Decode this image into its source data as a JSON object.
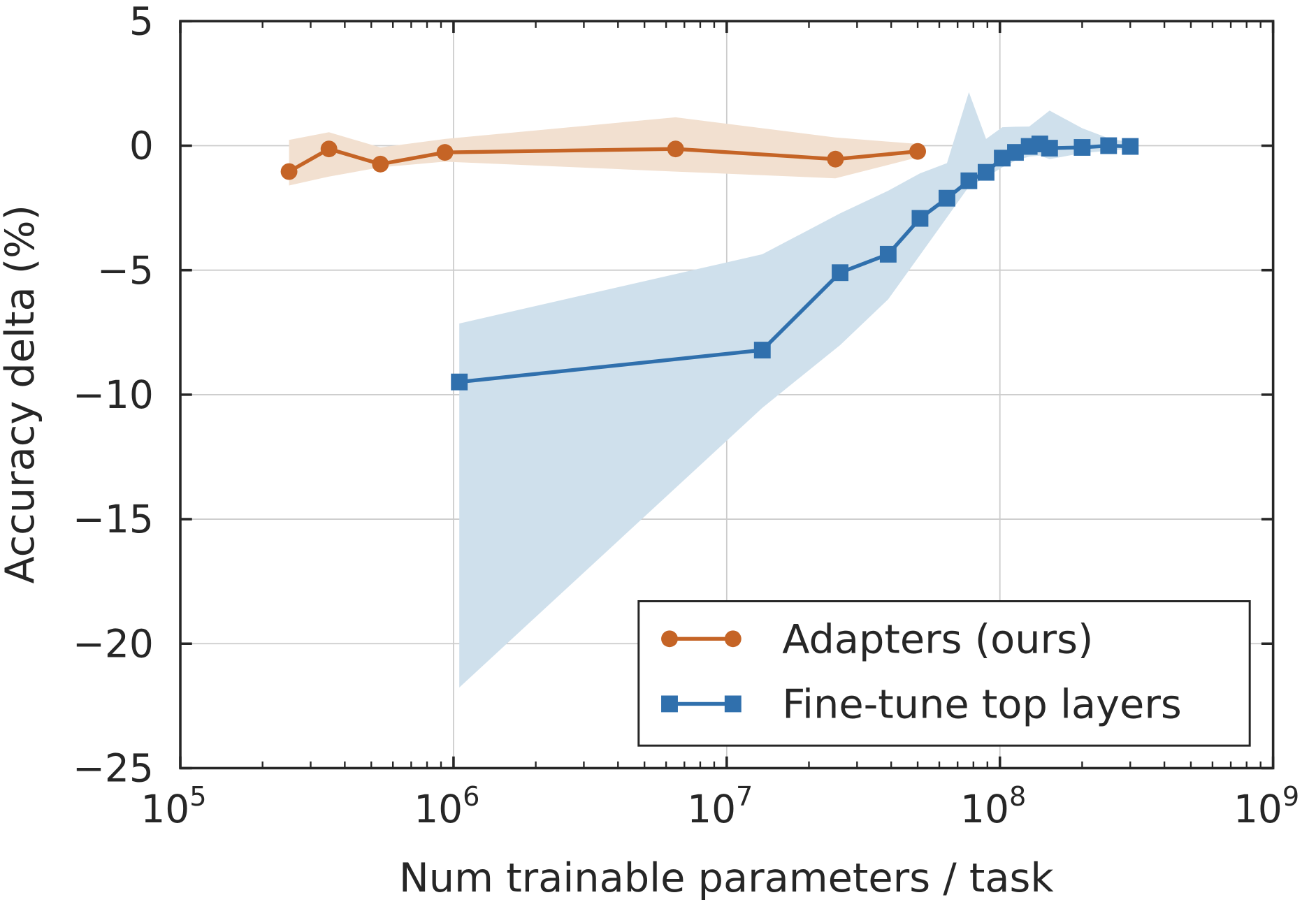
{
  "chart_data": {
    "type": "line",
    "title": "",
    "xlabel": "Num trainable parameters / task",
    "ylabel": "Accuracy delta (%)",
    "xscale": "log",
    "xlim": [
      100000,
      1000000000
    ],
    "ylim": [
      -25,
      5
    ],
    "xticks": [
      {
        "base": "10",
        "exp": "5",
        "value": 100000
      },
      {
        "base": "10",
        "exp": "6",
        "value": 1000000
      },
      {
        "base": "10",
        "exp": "7",
        "value": 10000000
      },
      {
        "base": "10",
        "exp": "8",
        "value": 100000000
      },
      {
        "base": "10",
        "exp": "9",
        "value": 1000000000
      }
    ],
    "yticks": [
      {
        "label": "5",
        "value": 5
      },
      {
        "label": "0",
        "value": 0
      },
      {
        "label": "−5",
        "value": -5
      },
      {
        "label": "−10",
        "value": -10
      },
      {
        "label": "−15",
        "value": -15
      },
      {
        "label": "−20",
        "value": -20
      },
      {
        "label": "−25",
        "value": -25
      }
    ],
    "grid": true,
    "legend_position": "bottom-right",
    "series": [
      {
        "name": "Adapters (ours)",
        "color": "#c56426",
        "band_color": "#f2e0d0",
        "marker": "circle",
        "x": [
          250000,
          350000,
          540000,
          930000,
          6500000,
          25000000,
          50000000
        ],
        "y": [
          -1.04,
          -0.13,
          -0.74,
          -0.27,
          -0.13,
          -0.54,
          -0.23
        ],
        "upper": [
          0.23,
          0.54,
          -0.07,
          0.27,
          1.14,
          0.33,
          0.07
        ],
        "lower": [
          -1.6,
          -1.24,
          -0.87,
          -0.64,
          -1.04,
          -1.31,
          -0.47
        ]
      },
      {
        "name": "Fine-tune top layers",
        "color": "#3070ad",
        "band_color": "#cfe0ec",
        "marker": "square",
        "x": [
          1050000,
          13500000,
          26000000,
          39000000,
          51000000,
          64000000,
          77000000,
          89000000,
          102000000,
          114000000,
          128000000,
          140000000,
          152000000,
          200000000,
          250000000,
          300000000
        ],
        "y": [
          -9.49,
          -8.21,
          -5.1,
          -4.36,
          -2.92,
          -2.11,
          -1.41,
          -1.07,
          -0.5,
          -0.27,
          -0.03,
          0.07,
          -0.1,
          -0.07,
          0.0,
          -0.03
        ],
        "upper": [
          -7.14,
          -4.36,
          -2.72,
          -1.81,
          -1.11,
          -0.7,
          2.15,
          0.27,
          0.74,
          0.76,
          0.77,
          1.1,
          1.41,
          0.7,
          0.3,
          0.13
        ],
        "lower": [
          -21.76,
          -10.53,
          -8.01,
          -6.17,
          -4.39,
          -2.88,
          -1.64,
          -1.27,
          -0.87,
          -0.6,
          -0.44,
          -0.4,
          -0.54,
          -0.3,
          -0.2,
          -0.13
        ]
      }
    ]
  }
}
